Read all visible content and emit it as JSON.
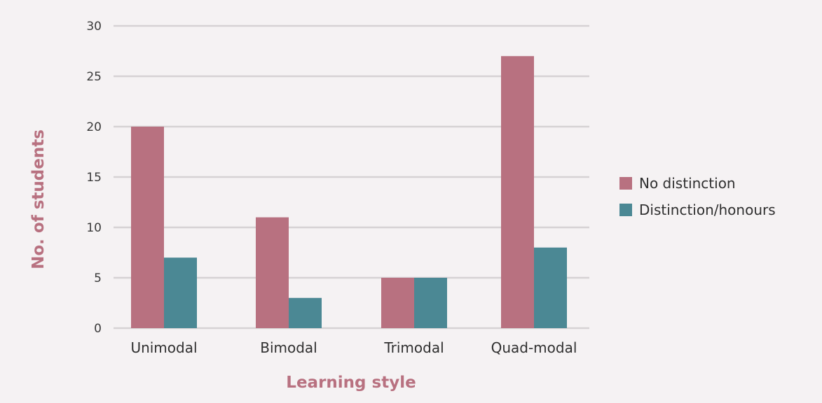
{
  "chart_data": {
    "type": "bar",
    "categories": [
      "Unimodal",
      "Bimodal",
      "Trimodal",
      "Quad-modal"
    ],
    "series": [
      {
        "name": "No distinction",
        "values": [
          20,
          11,
          5,
          27
        ],
        "color": "#b87180"
      },
      {
        "name": "Distinction/honours",
        "values": [
          7,
          3,
          5,
          8
        ],
        "color": "#4b8894"
      }
    ],
    "title": "",
    "xlabel": "Learning style",
    "ylabel": "No. of students",
    "ylim": [
      0,
      30
    ],
    "yticks": [
      0,
      5,
      10,
      15,
      20,
      25,
      30
    ],
    "grid": true,
    "legend_position": "right",
    "colors": {
      "axis_title": "#b87180",
      "grid": "#d6d2d4",
      "background": "#f5f2f3"
    }
  }
}
